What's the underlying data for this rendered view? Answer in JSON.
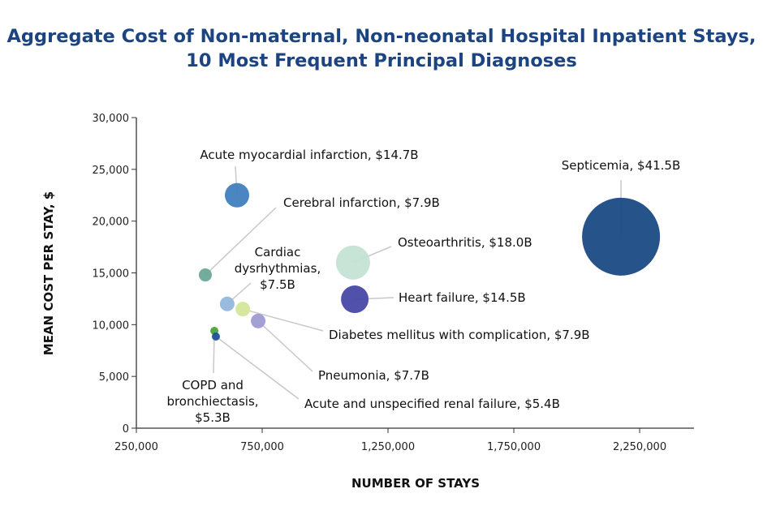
{
  "chart_data": {
    "type": "scatter",
    "title": "Aggregate Cost of Non-maternal, Non-neonatal Hospital Inpatient Stays, 10 Most Frequent Principal Diagnoses",
    "xlabel": "NUMBER OF STAYS",
    "ylabel": "MEAN COST PER STAY, $",
    "xlim": [
      250000,
      2466000
    ],
    "ylim": [
      0,
      30000
    ],
    "xticks": [
      "250,000",
      "750,000",
      "1,250,000",
      "1,750,000",
      "2,250,000"
    ],
    "xtick_values": [
      250000,
      750000,
      1250000,
      1750000,
      2250000
    ],
    "yticks": [
      "0",
      "5,000",
      "10,000",
      "15,000",
      "20,000",
      "25,000",
      "30,000"
    ],
    "ytick_values": [
      0,
      5000,
      10000,
      15000,
      20000,
      25000,
      30000
    ],
    "grid": false,
    "bubble_size": "aggregate cost",
    "points": [
      {
        "label": [
          "Septicemia, $41.5B"
        ],
        "x": 2176000,
        "y": 18500,
        "cost_billion": 41.5,
        "color": "#1b4a85"
      },
      {
        "label": [
          "Acute myocardial infarction, $14.7B"
        ],
        "x": 650000,
        "y": 22500,
        "cost_billion": 14.7,
        "color": "#3f7fbf"
      },
      {
        "label": [
          "Cerebral infarction, $7.9B"
        ],
        "x": 524000,
        "y": 14800,
        "cost_billion": 7.9,
        "color": "#6aa898"
      },
      {
        "label": [
          "Osteoarthritis, $18.0B"
        ],
        "x": 1111000,
        "y": 16000,
        "cost_billion": 18.0,
        "color": "#c4e3d4"
      },
      {
        "label": [
          "Heart failure, $14.5B"
        ],
        "x": 1118000,
        "y": 12450,
        "cost_billion": 14.5,
        "color": "#4848a8"
      },
      {
        "label": [
          "Cardiac",
          "dysrhythmias,",
          "$7.5B"
        ],
        "x": 611000,
        "y": 12000,
        "cost_billion": 7.5,
        "color": "#93b8dc"
      },
      {
        "label": [
          "Diabetes mellitus with complication, $7.9B"
        ],
        "x": 673000,
        "y": 11500,
        "cost_billion": 7.9,
        "color": "#d4e79a"
      },
      {
        "label": [
          "Pneumonia, $7.7B"
        ],
        "x": 734000,
        "y": 10350,
        "cost_billion": 7.7,
        "color": "#9d9bd3"
      },
      {
        "label": [
          "COPD and",
          "bronchiectasis,",
          "$5.3B"
        ],
        "x": 560000,
        "y": 9400,
        "cost_billion": 5.3,
        "color": "#4aa53a"
      },
      {
        "label": [
          "Acute and unspecified renal failure, $5.4B"
        ],
        "x": 566000,
        "y": 8850,
        "cost_billion": 5.4,
        "color": "#1f4f9a"
      }
    ]
  }
}
